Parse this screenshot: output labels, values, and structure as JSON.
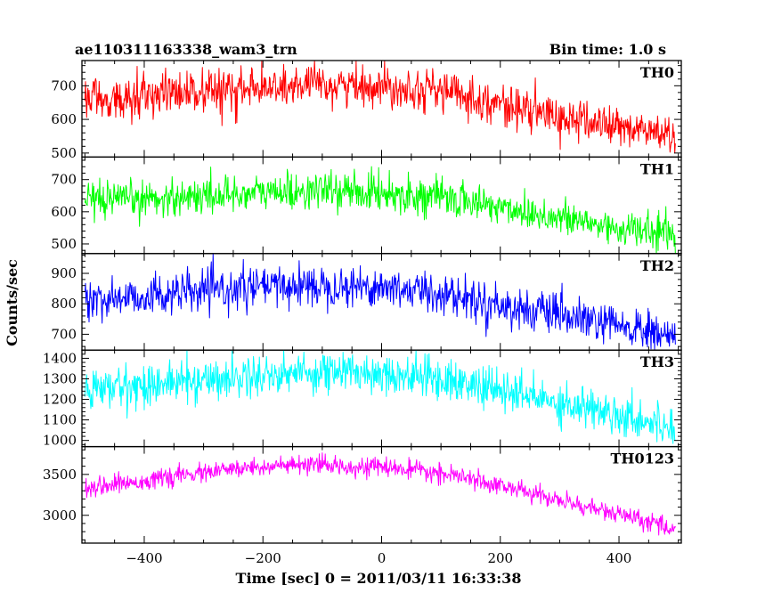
{
  "chart_data": {
    "type": "line",
    "title": "ae110311163338_wam3_trn",
    "bin_time_label": "Bin time: 1.0 s",
    "xlabel": "Time [sec] 0 = 2011/03/11 16:33:38",
    "ylabel": "Counts/sec",
    "xlim": [
      -505,
      505
    ],
    "x_ticks": [
      -400,
      -200,
      0,
      200,
      400
    ],
    "x_tick_labels": [
      "−400",
      "−200",
      "0",
      "200",
      "400"
    ],
    "bin_seconds": 1.0,
    "x_range": [
      -500,
      495
    ],
    "panels": [
      {
        "name": "TH0",
        "color": "#ff0000",
        "ylim": [
          488,
          775
        ],
        "y_ticks": [
          500,
          600,
          700
        ],
        "y_tick_labels": [
          "500",
          "600",
          "700"
        ],
        "noise_sigma": 30,
        "trend": [
          [
            -500,
            655
          ],
          [
            -400,
            668
          ],
          [
            -200,
            690
          ],
          [
            -100,
            702
          ],
          [
            0,
            700
          ],
          [
            100,
            688
          ],
          [
            200,
            645
          ],
          [
            300,
            605
          ],
          [
            400,
            578
          ],
          [
            495,
            552
          ]
        ]
      },
      {
        "name": "TH1",
        "color": "#00ff00",
        "ylim": [
          470,
          770
        ],
        "y_ticks": [
          500,
          600,
          700
        ],
        "y_tick_labels": [
          "500",
          "600",
          "700"
        ],
        "noise_sigma": 28,
        "trend": [
          [
            -500,
            625
          ],
          [
            -400,
            640
          ],
          [
            -200,
            660
          ],
          [
            -100,
            665
          ],
          [
            0,
            660
          ],
          [
            100,
            645
          ],
          [
            200,
            615
          ],
          [
            300,
            580
          ],
          [
            400,
            548
          ],
          [
            495,
            530
          ]
        ]
      },
      {
        "name": "TH2",
        "color": "#0000ff",
        "ylim": [
          648,
          965
        ],
        "y_ticks": [
          700,
          800,
          900
        ],
        "y_tick_labels": [
          "700",
          "800",
          "900"
        ],
        "noise_sigma": 33,
        "trend": [
          [
            -500,
            810
          ],
          [
            -400,
            825
          ],
          [
            -200,
            855
          ],
          [
            -100,
            862
          ],
          [
            0,
            855
          ],
          [
            100,
            835
          ],
          [
            200,
            795
          ],
          [
            300,
            760
          ],
          [
            400,
            725
          ],
          [
            495,
            690
          ]
        ]
      },
      {
        "name": "TH3",
        "color": "#00ffff",
        "ylim": [
          970,
          1440
        ],
        "y_ticks": [
          1000,
          1100,
          1200,
          1300,
          1400
        ],
        "y_tick_labels": [
          "1000",
          "1100",
          "1200",
          "1300",
          "1400"
        ],
        "noise_sigma": 50,
        "trend": [
          [
            -500,
            1245
          ],
          [
            -400,
            1270
          ],
          [
            -200,
            1320
          ],
          [
            -100,
            1335
          ],
          [
            0,
            1330
          ],
          [
            100,
            1300
          ],
          [
            200,
            1240
          ],
          [
            300,
            1185
          ],
          [
            400,
            1130
          ],
          [
            495,
            1060
          ]
        ]
      },
      {
        "name": "TH0123",
        "color": "#ff00ff",
        "ylim": [
          2660,
          3840
        ],
        "y_ticks": [
          3000,
          3500
        ],
        "y_tick_labels": [
          "3000",
          "3500"
        ],
        "noise_sigma": 55,
        "trend": [
          [
            -500,
            3340
          ],
          [
            -400,
            3420
          ],
          [
            -300,
            3520
          ],
          [
            -200,
            3600
          ],
          [
            -100,
            3610
          ],
          [
            0,
            3590
          ],
          [
            100,
            3510
          ],
          [
            200,
            3370
          ],
          [
            300,
            3180
          ],
          [
            400,
            3010
          ],
          [
            495,
            2830
          ]
        ]
      }
    ]
  }
}
